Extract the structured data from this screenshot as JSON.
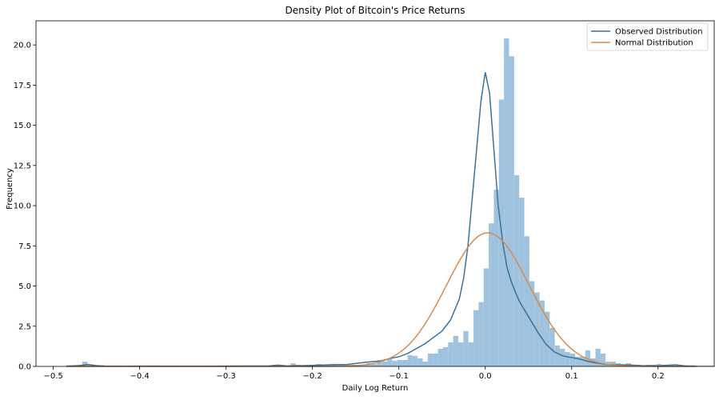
{
  "chart_data": {
    "type": "histogram",
    "title": "Density Plot of Bitcoin's Price Returns",
    "xlabel": "Daily Log Return",
    "ylabel": "Frequency",
    "xlim": [
      -0.52,
      0.265
    ],
    "ylim": [
      0,
      21.5
    ],
    "xticks": [
      -0.5,
      -0.4,
      -0.3,
      -0.2,
      -0.1,
      0.0,
      0.1,
      0.2
    ],
    "xtick_labels": [
      "−0.5",
      "−0.4",
      "−0.3",
      "−0.2",
      "−0.1",
      "0.0",
      "0.1",
      "0.2"
    ],
    "yticks": [
      0,
      2.5,
      5,
      7.5,
      10,
      12.5,
      15,
      17.5,
      20
    ],
    "ytick_labels": [
      "0.0",
      "2.5",
      "5.0",
      "7.5",
      "10.0",
      "12.5",
      "15.0",
      "17.5",
      "20.0"
    ],
    "grid": false,
    "legend": "top-right",
    "histogram": {
      "color": "#9fc3df",
      "bin_start": -0.484,
      "bin_width": 0.00588,
      "values": [
        0.05,
        0.05,
        0.1,
        0.3,
        0.1,
        0.05,
        0.05,
        0.05,
        0.05,
        0.05,
        0.05,
        0.05,
        0.05,
        0.05,
        0.05,
        0.05,
        0.05,
        0.05,
        0.05,
        0.05,
        0.05,
        0.05,
        0.05,
        0.05,
        0.05,
        0.05,
        0.05,
        0.05,
        0.05,
        0.05,
        0.05,
        0.05,
        0.05,
        0.05,
        0.05,
        0.05,
        0.05,
        0.05,
        0.05,
        0.05,
        0.05,
        0.05,
        0.05,
        0.05,
        0.2,
        0.1,
        0.05,
        0.05,
        0.1,
        0.15,
        0.1,
        0.1,
        0.15,
        0.15,
        0.1,
        0.1,
        0.1,
        0.05,
        0.1,
        0.2,
        0.15,
        0.25,
        0.3,
        0.5,
        0.35,
        0.4,
        0.4,
        0.7,
        0.65,
        0.5,
        0.3,
        0.8,
        0.8,
        1.1,
        1.2,
        1.5,
        1.9,
        1.5,
        2.2,
        1.5,
        3.5,
        4.0,
        6.1,
        8.9,
        11.0,
        16.6,
        20.4,
        19.3,
        11.9,
        10.5,
        8.1,
        5.3,
        4.6,
        4.1,
        3.4,
        2.4,
        1.3,
        1.1,
        0.9,
        0.8,
        0.6,
        0.6,
        1.0,
        0.5,
        1.1,
        0.8,
        0.3,
        0.3,
        0.2,
        0.1,
        0.2,
        0.1,
        0.1,
        0.05,
        0.1,
        0.1,
        0.15,
        0.1,
        0.05,
        0.05,
        0.05,
        0.05,
        0.05,
        0.05,
        0.05,
        0.05,
        0.05,
        0.05,
        0.05,
        0.05,
        0.05,
        0.05
      ]
    },
    "series": [
      {
        "name": "Observed Distribution",
        "color": "#3b7196",
        "x": [
          -0.485,
          -0.47,
          -0.46,
          -0.45,
          -0.44,
          -0.42,
          -0.4,
          -0.35,
          -0.3,
          -0.25,
          -0.24,
          -0.23,
          -0.2,
          -0.18,
          -0.16,
          -0.14,
          -0.13,
          -0.12,
          -0.11,
          -0.1,
          -0.09,
          -0.08,
          -0.07,
          -0.06,
          -0.05,
          -0.04,
          -0.03,
          -0.025,
          -0.02,
          -0.015,
          -0.01,
          -0.005,
          0.0,
          0.005,
          0.01,
          0.015,
          0.02,
          0.025,
          0.03,
          0.035,
          0.04,
          0.05,
          0.06,
          0.07,
          0.08,
          0.09,
          0.1,
          0.11,
          0.12,
          0.13,
          0.14,
          0.15,
          0.16,
          0.17,
          0.18,
          0.2,
          0.22,
          0.23,
          0.245
        ],
        "y": [
          0.02,
          0.05,
          0.12,
          0.05,
          0.02,
          0.01,
          0.02,
          0.01,
          0.02,
          0.03,
          0.08,
          0.03,
          0.06,
          0.1,
          0.12,
          0.25,
          0.3,
          0.35,
          0.5,
          0.6,
          0.8,
          1.1,
          1.4,
          1.8,
          2.2,
          2.9,
          4.2,
          5.5,
          7.5,
          10.5,
          13.5,
          16.5,
          18.3,
          17.0,
          13.5,
          10.0,
          7.8,
          6.2,
          5.3,
          4.6,
          4.0,
          3.1,
          2.2,
          1.4,
          0.9,
          0.65,
          0.55,
          0.45,
          0.3,
          0.2,
          0.12,
          0.1,
          0.1,
          0.08,
          0.05,
          0.04,
          0.1,
          0.04,
          0.01
        ]
      },
      {
        "name": "Normal Distribution",
        "color": "#d58b4f",
        "mean": 0.003,
        "std": 0.048,
        "x_range": [
          -0.485,
          0.245
        ]
      }
    ]
  }
}
